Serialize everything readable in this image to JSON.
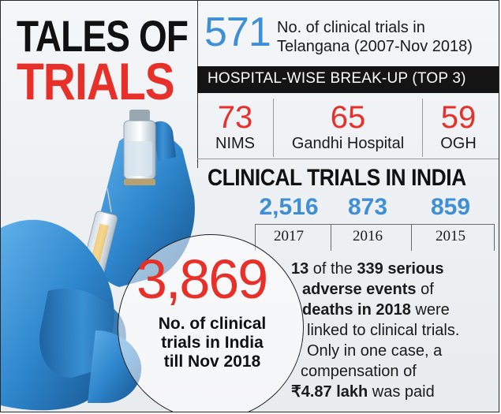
{
  "headline": {
    "line1": "TALES OF",
    "line2": "TRIALS"
  },
  "telangana": {
    "count": "571",
    "desc_line1": "No. of clinical trials in",
    "desc_line2": "Telangana (2007-Nov 2018)"
  },
  "breakup_title": "HOSPITAL-WISE BREAK-UP (TOP 3)",
  "hospitals": [
    {
      "count": "73",
      "name": "NIMS"
    },
    {
      "count": "65",
      "name": "Gandhi Hospital"
    },
    {
      "count": "59",
      "name": "OGH"
    }
  ],
  "india": {
    "title": "CLINICAL TRIALS IN INDIA",
    "years": [
      {
        "value": "2,516",
        "year": "2017"
      },
      {
        "value": "873",
        "year": "2016"
      },
      {
        "value": "859",
        "year": "2015"
      }
    ]
  },
  "total": {
    "count": "3,869",
    "line1": "No. of clinical",
    "line2": "trials in India",
    "line3": "till Nov 2018"
  },
  "adverse": {
    "n_bold": "13",
    "of_text": " of the ",
    "total_bold": "339 serious",
    "line2_bold": "adverse events",
    "line2_rest": "  of",
    "line3_bold": "deaths in 2018",
    "line3_rest": " were",
    "line4": "linked to clinical trials.",
    "line5": "Only in one case, a",
    "line6": "compensation of",
    "amount_bold": "₹4.87 lakh",
    "amount_rest": " was paid"
  },
  "colors": {
    "accent_red": "#e8302a",
    "accent_blue": "#3e8fd6",
    "bar": "#141414",
    "glove": "#2f7fc4"
  }
}
